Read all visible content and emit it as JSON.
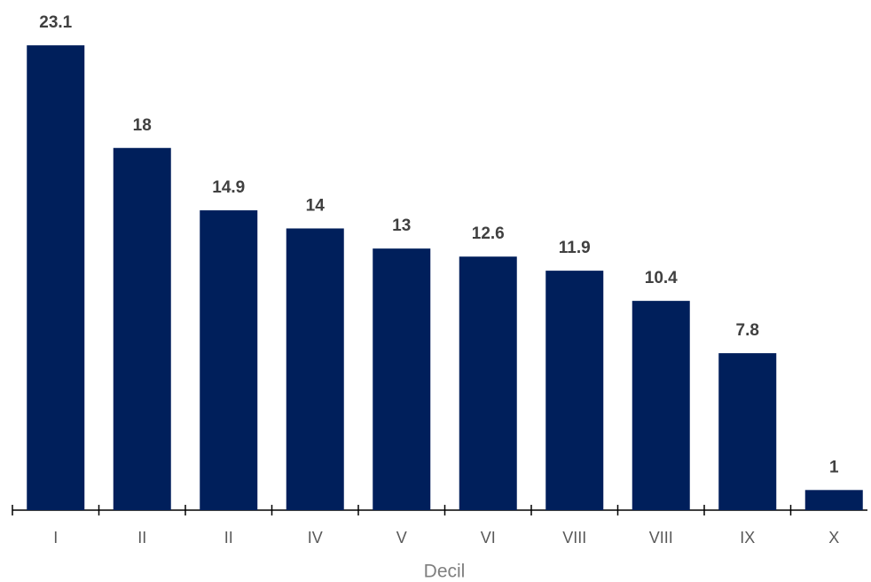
{
  "chart_data": {
    "type": "bar",
    "x_label": "Decil",
    "categories": [
      "I",
      "II",
      "II",
      "IV",
      "V",
      "VI",
      "VIII",
      "VIII",
      "IX",
      "X"
    ],
    "values": [
      23.1,
      18,
      14.9,
      14,
      13,
      12.6,
      11.9,
      10.4,
      7.8,
      1
    ],
    "color": "#001f5b",
    "ylim": [
      0,
      25
    ],
    "grid": false
  }
}
